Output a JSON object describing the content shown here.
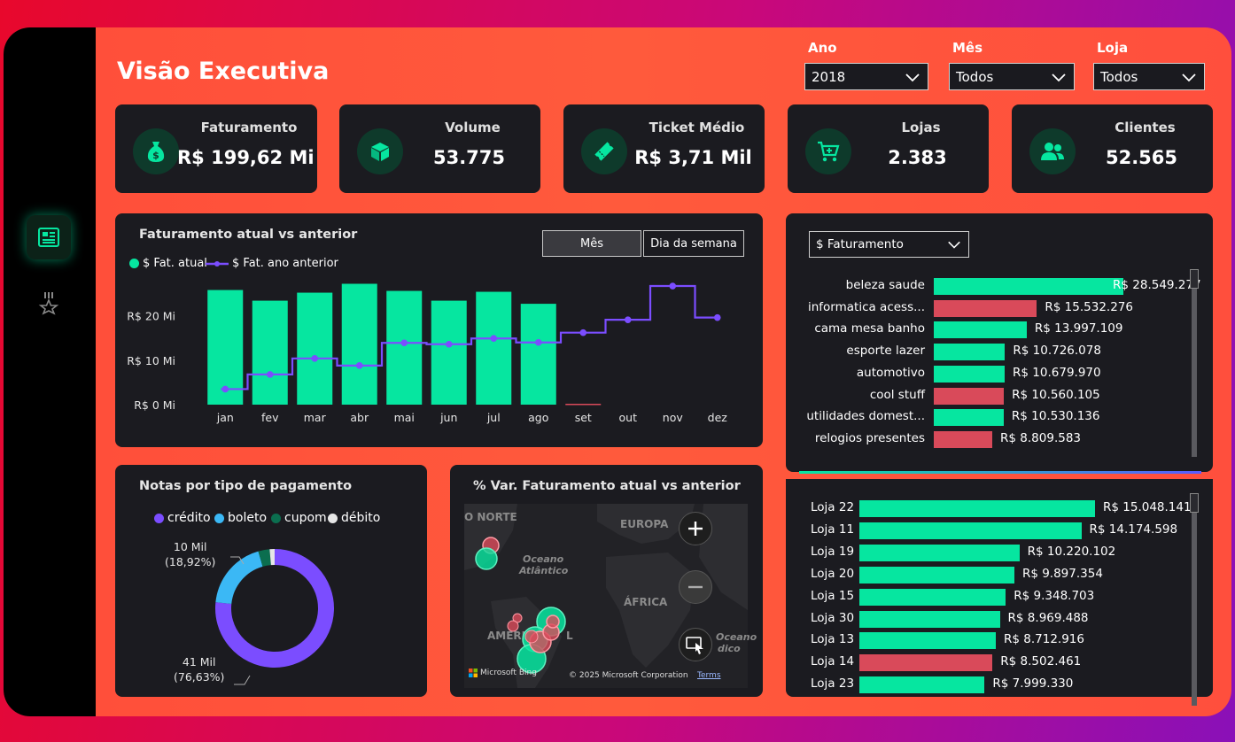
{
  "page": {
    "title": "Visão Executiva"
  },
  "filters": [
    {
      "label": "Ano",
      "value": "2018"
    },
    {
      "label": "Mês",
      "value": "Todos"
    },
    {
      "label": "Loja",
      "value": "Todos"
    }
  ],
  "kpis": [
    {
      "label": "Faturamento",
      "value": "R$ 199,62 Mi",
      "icon": "money-bag-icon"
    },
    {
      "label": "Volume",
      "value": "53.775",
      "icon": "box-icon"
    },
    {
      "label": "Ticket Médio",
      "value": "R$ 3,71 Mil",
      "icon": "ticket-icon"
    },
    {
      "label": "Lojas",
      "value": "2.383",
      "icon": "cart-icon"
    },
    {
      "label": "Clientes",
      "value": "52.565",
      "icon": "users-icon"
    }
  ],
  "colors": {
    "green": "#06e6a0",
    "red": "#d94a5a",
    "purple": "#7b4dff",
    "blue": "#3bb8f5",
    "darkgreen": "#0b6e4f",
    "white": "#e6e6e6",
    "panel": "#1b1b20"
  },
  "revenue_chart": {
    "title": "Faturamento atual vs anterior",
    "toggle": {
      "month": "Mês",
      "weekday": "Dia da semana"
    },
    "chart_data": {
      "type": "bar",
      "categories": [
        "jan",
        "fev",
        "mar",
        "abr",
        "mai",
        "jun",
        "jul",
        "ago",
        "set",
        "out",
        "nov",
        "dez"
      ],
      "series": [
        {
          "name": "$ Fat. atual",
          "type": "bar",
          "values": [
            25.8,
            23.4,
            25.2,
            27.2,
            25.6,
            23.4,
            25.4,
            22.7,
            0.1,
            null,
            null,
            null
          ]
        },
        {
          "name": "$ Fat. ano anterior",
          "type": "line",
          "values": [
            3.5,
            6.8,
            10.4,
            8.8,
            13.9,
            13.6,
            14.9,
            14.0,
            16.2,
            19.1,
            26.7,
            19.6
          ]
        }
      ],
      "yticks": [
        "R$ 0 Mi",
        "R$ 10 Mi",
        "R$ 20 Mi"
      ],
      "ylim": [
        0,
        27.5
      ]
    }
  },
  "payment_chart": {
    "title": "Notas por tipo de pagamento",
    "chart_data": {
      "type": "pie",
      "labels": [
        "crédito",
        "boleto",
        "cupom",
        "débito"
      ],
      "values": [
        76.63,
        18.92,
        3.1,
        1.35
      ],
      "annotations": [
        {
          "value": "10 Mil",
          "percent": "(18,92%)"
        },
        {
          "value": "41 Mil",
          "percent": "(76,63%)"
        }
      ]
    }
  },
  "map_panel": {
    "title": "% Var. Faturamento atual vs anterior",
    "labels": {
      "north": "O NORTE",
      "ocean1": "Oceano",
      "ocean2": "Atlântico",
      "europe": "EUROPA",
      "africa": "ÁFRICA",
      "america": "AMÉRIC",
      "south": "L",
      "ocean3": "Oceano",
      "ocean4": "dico"
    },
    "brand": "Microsoft Bing",
    "copyright": "© 2025 Microsoft Corporation",
    "terms": "Terms"
  },
  "category_panel": {
    "dropdown": "$ Faturamento",
    "max": 28549277,
    "items": [
      {
        "label": "beleza saude",
        "value_text": "R$ 28.549.277",
        "value": 28549277,
        "color": "green"
      },
      {
        "label": "informatica acess...",
        "value_text": "R$ 15.532.276",
        "value": 15532276,
        "color": "red"
      },
      {
        "label": "cama mesa banho",
        "value_text": "R$ 13.997.109",
        "value": 13997109,
        "color": "green"
      },
      {
        "label": "esporte lazer",
        "value_text": "R$ 10.726.078",
        "value": 10726078,
        "color": "green"
      },
      {
        "label": "automotivo",
        "value_text": "R$ 10.679.970",
        "value": 10679970,
        "color": "green"
      },
      {
        "label": "cool stuff",
        "value_text": "R$ 10.560.105",
        "value": 10560105,
        "color": "red"
      },
      {
        "label": "utilidades domest...",
        "value_text": "R$ 10.530.136",
        "value": 10530136,
        "color": "green"
      },
      {
        "label": "relogios presentes",
        "value_text": "R$ 8.809.583",
        "value": 8809583,
        "color": "red"
      }
    ]
  },
  "store_panel": {
    "max": 15048141,
    "items": [
      {
        "label": "Loja 22",
        "value_text": "R$ 15.048.141",
        "value": 15048141,
        "color": "green"
      },
      {
        "label": "Loja 11",
        "value_text": "R$ 14.174.598",
        "value": 14174598,
        "color": "green"
      },
      {
        "label": "Loja 19",
        "value_text": "R$ 10.220.102",
        "value": 10220102,
        "color": "green"
      },
      {
        "label": "Loja 20",
        "value_text": "R$ 9.897.354",
        "value": 9897354,
        "color": "green"
      },
      {
        "label": "Loja 15",
        "value_text": "R$ 9.348.703",
        "value": 9348703,
        "color": "green"
      },
      {
        "label": "Loja 30",
        "value_text": "R$ 8.969.488",
        "value": 8969488,
        "color": "green"
      },
      {
        "label": "Loja 13",
        "value_text": "R$ 8.712.916",
        "value": 8712916,
        "color": "green"
      },
      {
        "label": "Loja 14",
        "value_text": "R$ 8.502.461",
        "value": 8502461,
        "color": "red"
      },
      {
        "label": "Loja 23",
        "value_text": "R$ 7.999.330",
        "value": 7999330,
        "color": "green"
      }
    ]
  }
}
